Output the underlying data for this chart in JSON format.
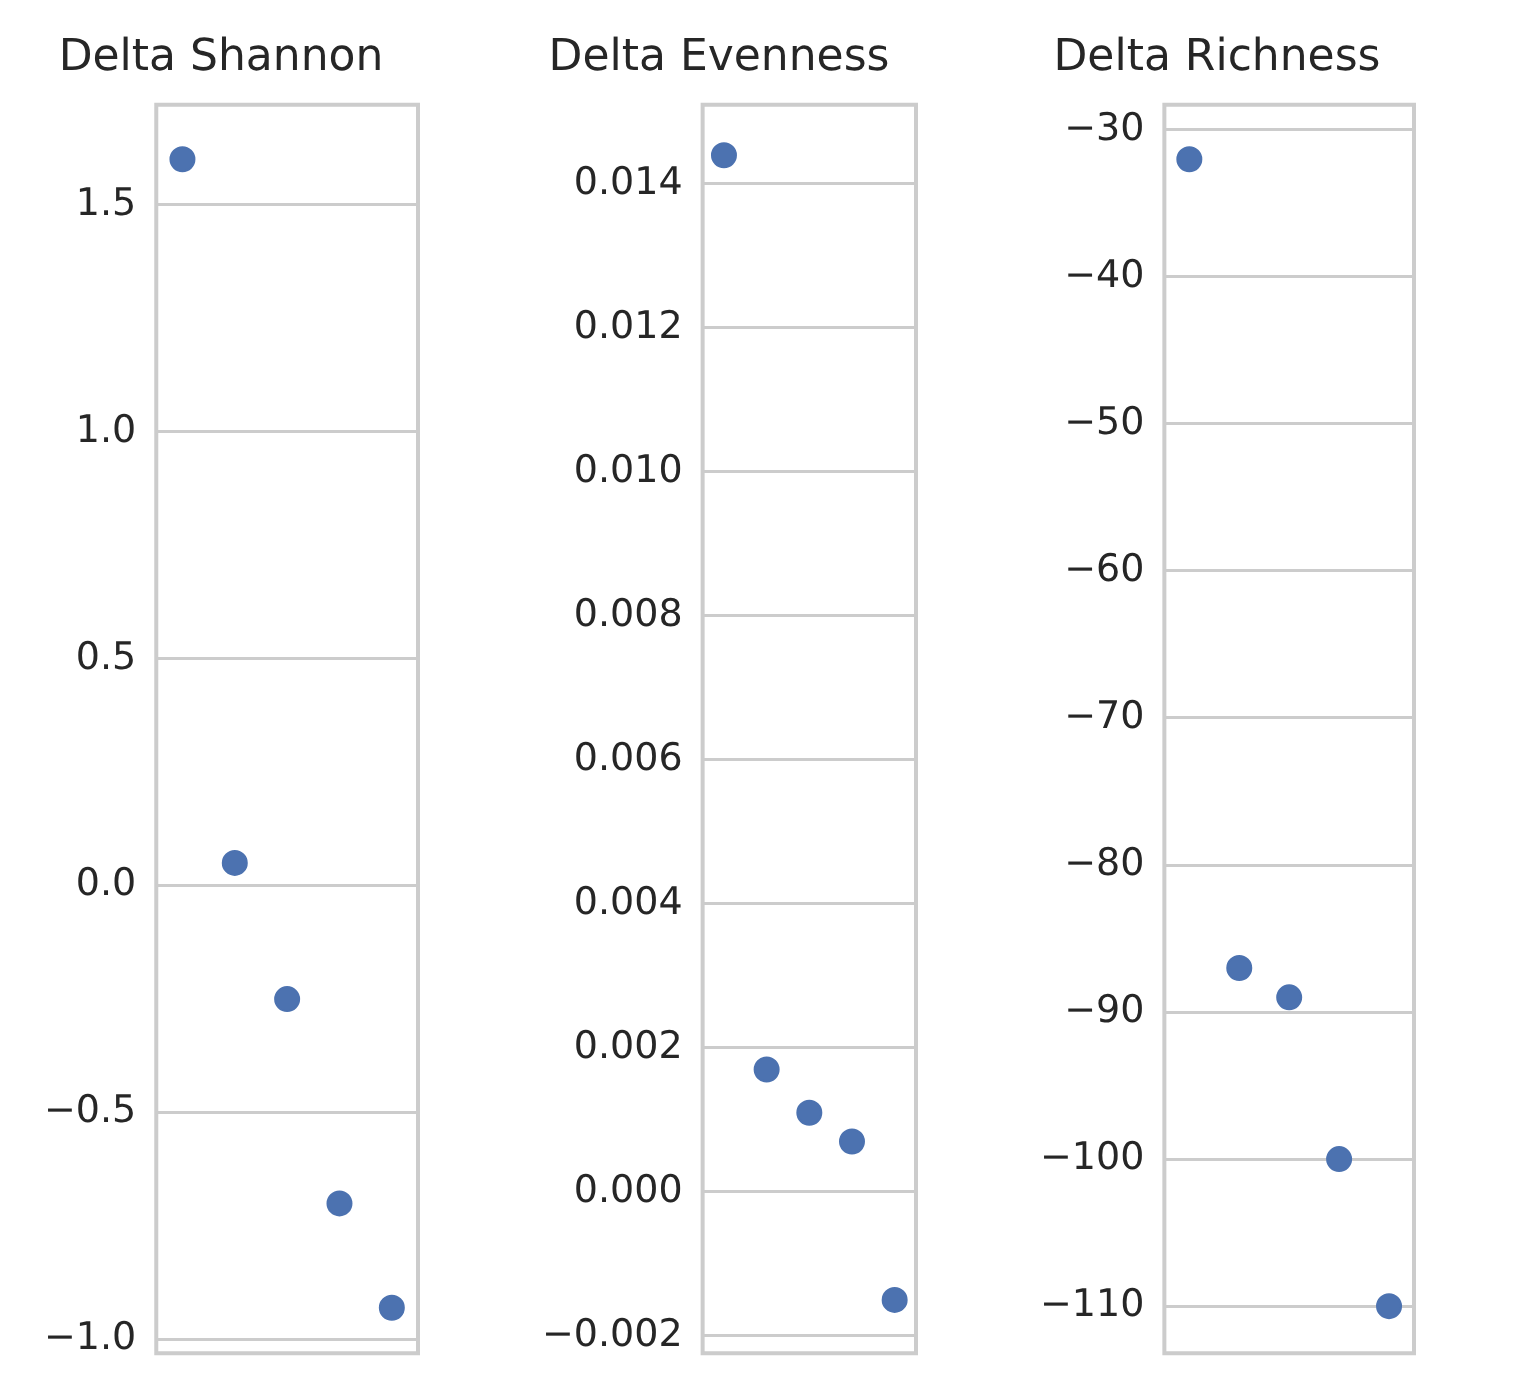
{
  "chart_data": [
    {
      "type": "scatter",
      "title": "Delta Shannon",
      "categories": [
        null,
        null,
        null,
        null,
        null
      ],
      "values": [
        1.6,
        0.05,
        -0.25,
        -0.7,
        -0.93
      ],
      "color": "#4c72b0",
      "ylim": [
        -1.03,
        1.72
      ],
      "yticks": [
        {
          "value": -1.0,
          "label": "−1.0"
        },
        {
          "value": -0.5,
          "label": "−0.5"
        },
        {
          "value": 0.0,
          "label": "0.0"
        },
        {
          "value": 0.5,
          "label": "0.5"
        },
        {
          "value": 1.0,
          "label": "1.0"
        },
        {
          "value": 1.5,
          "label": "1.5"
        }
      ],
      "grid": "y",
      "tick_labels": "y",
      "marker": "circle",
      "legend": false
    },
    {
      "type": "scatter",
      "title": "Delta Evenness",
      "categories": [
        null,
        null,
        null,
        null,
        null
      ],
      "values": [
        0.0144,
        0.0017,
        0.0011,
        0.0007,
        -0.0015
      ],
      "color": "#4c72b0",
      "ylim": [
        -0.00224,
        0.0151
      ],
      "yticks": [
        {
          "value": -0.002,
          "label": "−0.002"
        },
        {
          "value": 0.0,
          "label": "0.000"
        },
        {
          "value": 0.002,
          "label": "0.002"
        },
        {
          "value": 0.004,
          "label": "0.004"
        },
        {
          "value": 0.006,
          "label": "0.006"
        },
        {
          "value": 0.008,
          "label": "0.008"
        },
        {
          "value": 0.01,
          "label": "0.010"
        },
        {
          "value": 0.012,
          "label": "0.012"
        },
        {
          "value": 0.014,
          "label": "0.014"
        }
      ],
      "grid": "y",
      "tick_labels": "y",
      "marker": "circle",
      "legend": false
    },
    {
      "type": "scatter",
      "title": "Delta Richness",
      "categories": [
        null,
        null,
        null,
        null,
        null
      ],
      "values": [
        -32,
        -87,
        -89,
        -100,
        -110
      ],
      "color": "#4c72b0",
      "ylim": [
        -113.2,
        -28.3
      ],
      "yticks": [
        {
          "value": -110,
          "label": "−110"
        },
        {
          "value": -100,
          "label": "−100"
        },
        {
          "value": -90,
          "label": "−90"
        },
        {
          "value": -80,
          "label": "−80"
        },
        {
          "value": -70,
          "label": "−70"
        },
        {
          "value": -60,
          "label": "−60"
        },
        {
          "value": -50,
          "label": "−50"
        },
        {
          "value": -40,
          "label": "−40"
        },
        {
          "value": -30,
          "label": "−30"
        }
      ],
      "grid": "y",
      "tick_labels": "y",
      "marker": "circle",
      "legend": false
    }
  ]
}
